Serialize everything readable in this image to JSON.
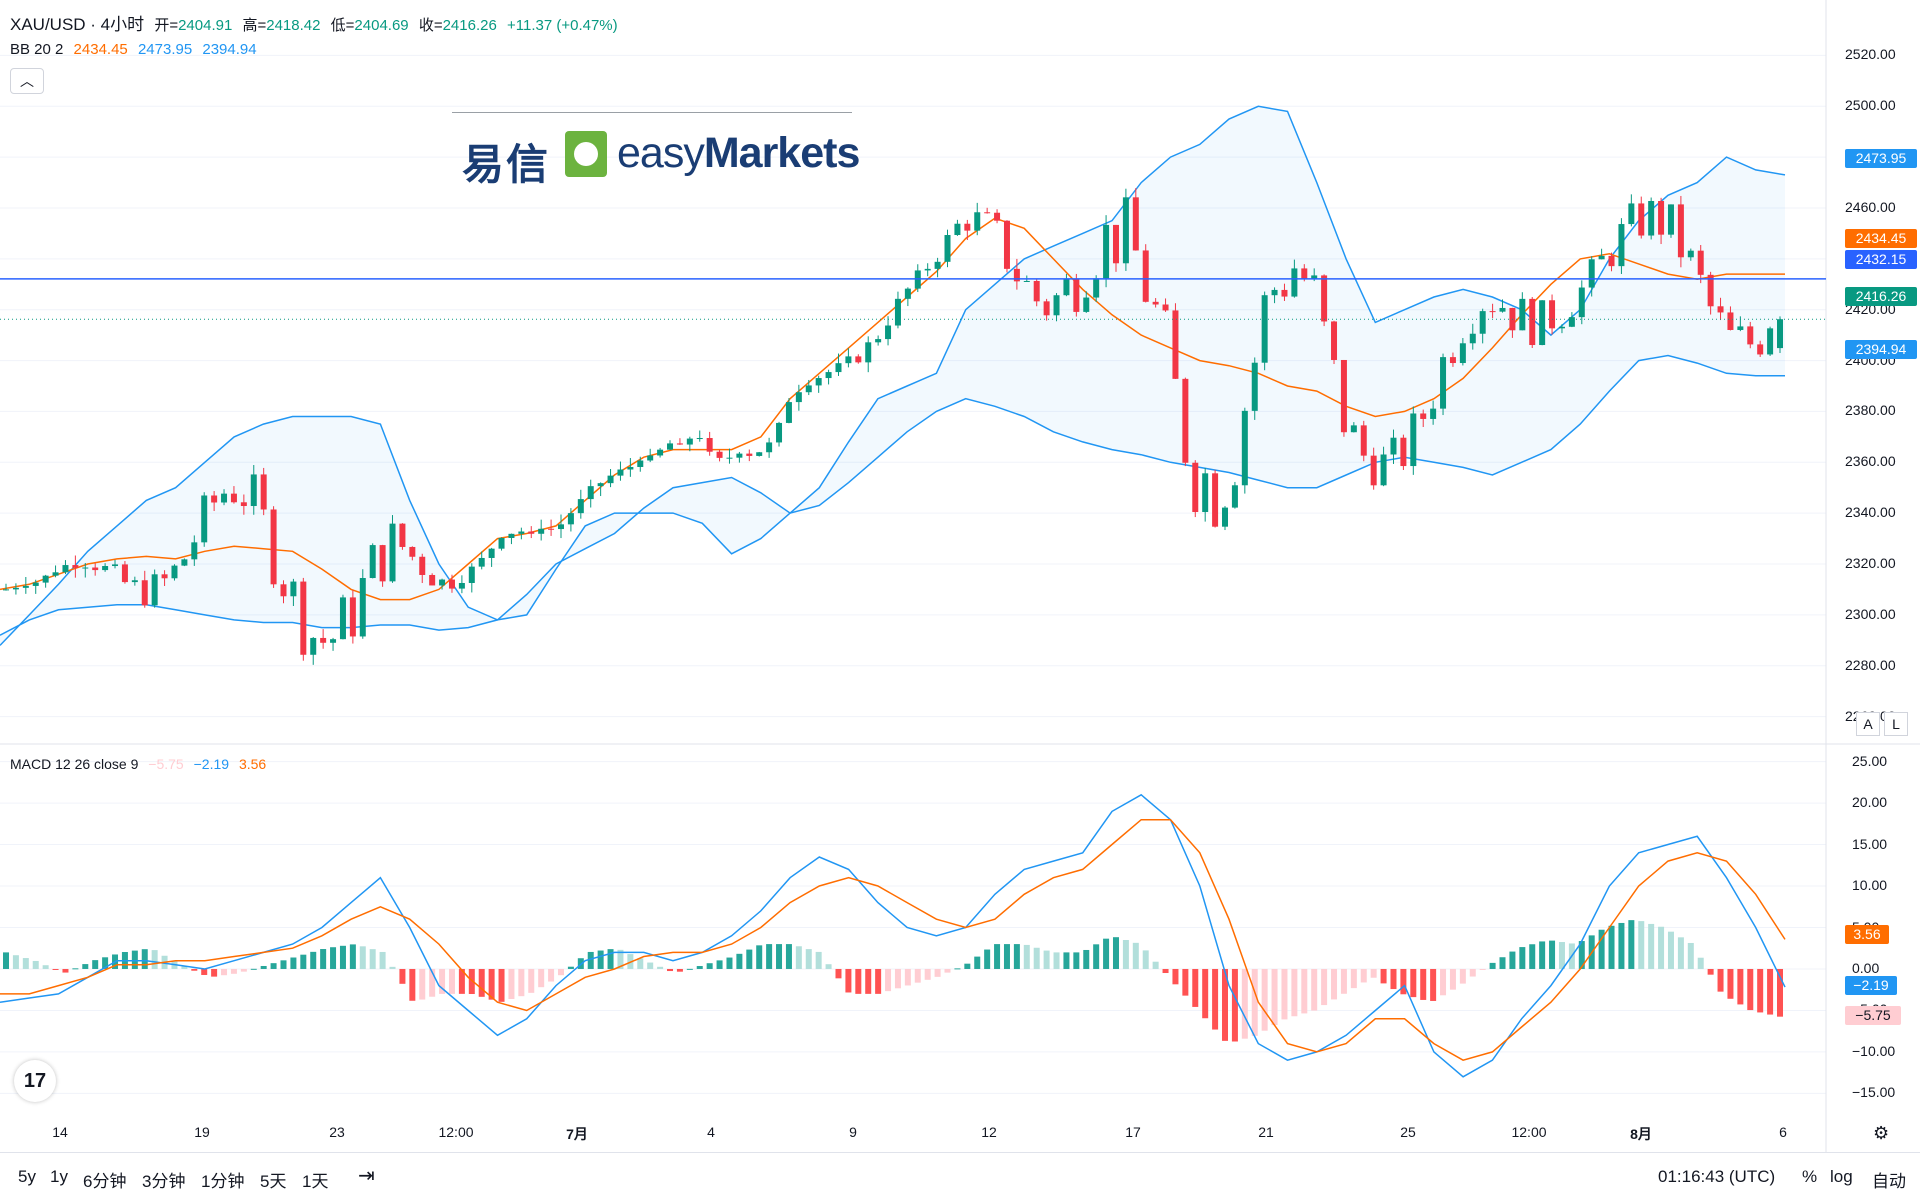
{
  "header": {
    "symbol": "XAU/USD · 4小时",
    "open_label": "开=",
    "open_value": "2404.91",
    "high_label": "高=",
    "high_value": "2418.42",
    "low_label": "低=",
    "low_value": "2404.69",
    "close_label": "收=",
    "close_value": "2416.26",
    "change": "+11.37 (+0.47%)"
  },
  "bb_legend": {
    "label": "BB 20 2",
    "basis": "2434.45",
    "upper": "2473.95",
    "lower": "2394.94"
  },
  "macd_legend": {
    "label": "MACD 12 26 close 9",
    "histogram": "−5.75",
    "macd": "−2.19",
    "signal": "3.56"
  },
  "logo": {
    "cn_text": "易信",
    "en_text_light": "easy",
    "en_text_bold": "Markets"
  },
  "price_scale": {
    "ticks": [
      "2520.00",
      "2500.00",
      "2480.00",
      "2460.00",
      "2440.00",
      "2420.00",
      "2400.00",
      "2380.00",
      "2360.00",
      "2340.00",
      "2320.00",
      "2300.00",
      "2280.00",
      "2260.00"
    ],
    "badges": {
      "bb_upper": "2473.95",
      "bb_basis": "2434.45",
      "horizontal_line": "2432.15",
      "last_price": "2416.26",
      "bb_lower": "2394.94"
    }
  },
  "macd_scale": {
    "ticks": [
      "25.00",
      "20.00",
      "15.00",
      "10.00",
      "5.00",
      "0.00",
      "−5.00",
      "−10.00",
      "−15.00"
    ],
    "badges": {
      "signal": "3.56",
      "macd": "−2.19",
      "histogram": "−5.75"
    }
  },
  "time_axis": {
    "labels": [
      {
        "text": "14",
        "bold": false
      },
      {
        "text": "19",
        "bold": false
      },
      {
        "text": "23",
        "bold": false
      },
      {
        "text": "12:00",
        "bold": false
      },
      {
        "text": "7月",
        "bold": true
      },
      {
        "text": "4",
        "bold": false
      },
      {
        "text": "9",
        "bold": false
      },
      {
        "text": "12",
        "bold": false
      },
      {
        "text": "17",
        "bold": false
      },
      {
        "text": "21",
        "bold": false
      },
      {
        "text": "25",
        "bold": false
      },
      {
        "text": "12:00",
        "bold": false
      },
      {
        "text": "8月",
        "bold": true
      },
      {
        "text": "6",
        "bold": false
      }
    ]
  },
  "scale_buttons": {
    "auto_label": "A",
    "log_label": "L"
  },
  "bottom_bar": {
    "ranges": [
      "5y",
      "1y",
      "6分钟",
      "3分钟",
      "1分钟",
      "5天",
      "1天"
    ],
    "clock": "01:16:43 (UTC)",
    "percent": "%",
    "log": "log",
    "auto": "自动"
  },
  "tv_logo_text": "17",
  "colors": {
    "up": "#089981",
    "down": "#f23645",
    "bb_band": "#2196f3",
    "bb_basis": "#ff6d00",
    "horizontal_line": "#2962ff",
    "macd_line": "#2196f3",
    "signal_line": "#ff6d00",
    "hist_up_strong": "#26a69a",
    "hist_up_weak": "#b2dfdb",
    "hist_down_strong": "#ff5252",
    "hist_down_weak": "#ffcdd2"
  },
  "chart_data": [
    {
      "type": "candlestick",
      "title": "XAU/USD · 4小时",
      "ylim": [
        2250,
        2530
      ],
      "overlays": [
        "BB 20 2"
      ],
      "bollinger_upper_path": [
        2288,
        2300,
        2312,
        2325,
        2335,
        2345,
        2350,
        2360,
        2370,
        2375,
        2378,
        2378,
        2378,
        2375,
        2345,
        2320,
        2303,
        2298,
        2300,
        2318,
        2335,
        2340,
        2340,
        2340,
        2336,
        2324,
        2330,
        2340,
        2350,
        2368,
        2385,
        2390,
        2395,
        2420,
        2430,
        2440,
        2445,
        2450,
        2455,
        2470,
        2480,
        2485,
        2495,
        2500,
        2498,
        2470,
        2440,
        2415,
        2420,
        2425,
        2428,
        2425,
        2420,
        2410,
        2420,
        2440,
        2455,
        2465,
        2470,
        2480,
        2475,
        2473
      ],
      "bollinger_lower_path": [
        2292,
        2298,
        2302,
        2303,
        2304,
        2304,
        2302,
        2300,
        2298,
        2297,
        2297,
        2295,
        2295,
        2296,
        2296,
        2294,
        2295,
        2298,
        2308,
        2320,
        2326,
        2332,
        2342,
        2350,
        2352,
        2354,
        2348,
        2340,
        2343,
        2352,
        2362,
        2372,
        2380,
        2385,
        2382,
        2378,
        2372,
        2368,
        2365,
        2363,
        2360,
        2358,
        2356,
        2353,
        2350,
        2350,
        2355,
        2360,
        2362,
        2360,
        2358,
        2355,
        2360,
        2365,
        2375,
        2388,
        2400,
        2402,
        2399,
        2395,
        2394,
        2394
      ],
      "bollinger_basis_path": [
        2310,
        2312,
        2316,
        2320,
        2322,
        2323,
        2322,
        2325,
        2327,
        2326,
        2325,
        2318,
        2310,
        2306,
        2306,
        2310,
        2320,
        2330,
        2332,
        2335,
        2345,
        2355,
        2362,
        2365,
        2365,
        2365,
        2370,
        2385,
        2395,
        2405,
        2415,
        2425,
        2435,
        2448,
        2456,
        2452,
        2440,
        2428,
        2418,
        2410,
        2405,
        2400,
        2398,
        2395,
        2390,
        2388,
        2382,
        2378,
        2380,
        2385,
        2393,
        2405,
        2418,
        2430,
        2440,
        2442,
        2438,
        2434,
        2432,
        2434,
        2434,
        2434
      ],
      "horizontal_line": 2432.15,
      "last_close": 2416.26,
      "open": 2404.91,
      "high": 2418.42,
      "low": 2404.69,
      "close": 2416.26
    },
    {
      "type": "macd",
      "title": "MACD 12 26 close 9",
      "ylim": [
        -17,
        27
      ],
      "macd_line_path": [
        -4,
        -3.5,
        -3,
        -1,
        1,
        1,
        0.5,
        0,
        1,
        2,
        3,
        5,
        8,
        11,
        5,
        -2,
        -5,
        -8,
        -6,
        -2,
        1,
        2,
        2,
        1,
        2,
        4,
        7,
        11,
        13.5,
        12,
        8,
        5,
        4,
        5,
        9,
        12,
        13,
        14,
        19,
        21,
        18,
        10,
        -2,
        -9,
        -11,
        -10,
        -8,
        -5,
        -2,
        -10,
        -13,
        -11,
        -6,
        -2,
        3,
        10,
        14,
        15,
        16,
        11,
        5,
        -2.19
      ],
      "signal_line_path": [
        -3,
        -3,
        -2,
        -1,
        0.5,
        0.5,
        1,
        1,
        1.5,
        2,
        2.5,
        4,
        6,
        7.5,
        6,
        3,
        -1,
        -4,
        -5,
        -3,
        -1,
        0,
        1.5,
        2,
        2,
        3,
        5,
        8,
        10,
        11,
        10,
        8,
        6,
        5,
        6,
        9,
        11,
        12,
        15,
        18,
        18,
        14,
        6,
        -4,
        -9,
        -10,
        -9,
        -6,
        -6,
        -9,
        -11,
        -10,
        -7,
        -4,
        0,
        5,
        10,
        13,
        14,
        13,
        9,
        3.56
      ],
      "histogram_path": [
        2,
        1,
        -0.5,
        1,
        2,
        2.5,
        0.5,
        -1,
        -0.5,
        0.5,
        1.5,
        2.5,
        3,
        2,
        -4,
        -3,
        -3,
        -4,
        -3,
        -1,
        2,
        2.5,
        1,
        -0.5,
        0.5,
        1.5,
        3,
        3,
        2,
        -3,
        -3,
        -2,
        -1,
        0.5,
        3,
        3,
        2,
        2,
        4,
        3,
        -1,
        -5,
        -9,
        -8,
        -6,
        -5,
        -3,
        -1,
        -3,
        -4,
        -2,
        0.5,
        2.5,
        3.5,
        3,
        5,
        6,
        5,
        3,
        -3,
        -5,
        -5.75
      ],
      "last_values": {
        "histogram": -5.75,
        "macd": -2.19,
        "signal": 3.56
      }
    }
  ]
}
